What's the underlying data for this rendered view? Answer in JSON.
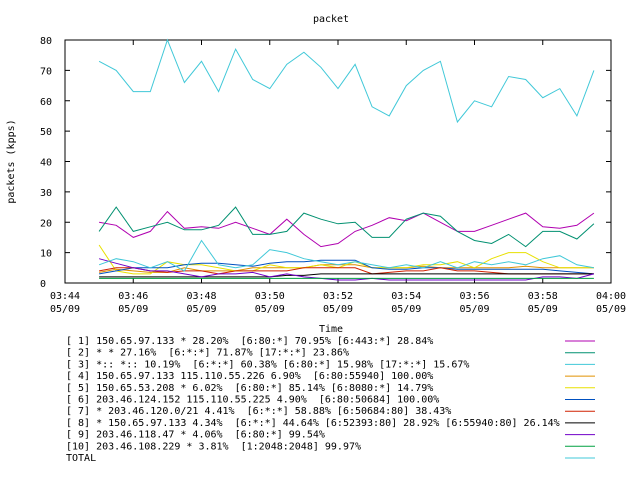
{
  "chart_data": {
    "type": "line",
    "title": "packet",
    "xlabel": "Time",
    "ylabel": "packets (kpps)",
    "ylim": [
      0,
      80
    ],
    "yticks": [
      0,
      10,
      20,
      30,
      40,
      50,
      60,
      70,
      80
    ],
    "xlim": [
      "03:44",
      "04:00"
    ],
    "xticks": [
      {
        "time": "03:44",
        "date": "05/09"
      },
      {
        "time": "03:46",
        "date": "05/09"
      },
      {
        "time": "03:48",
        "date": "05/09"
      },
      {
        "time": "03:50",
        "date": "05/09"
      },
      {
        "time": "03:52",
        "date": "05/09"
      },
      {
        "time": "03:54",
        "date": "05/09"
      },
      {
        "time": "03:56",
        "date": "05/09"
      },
      {
        "time": "03:58",
        "date": "05/09"
      },
      {
        "time": "04:00",
        "date": "05/09"
      }
    ],
    "grid": false,
    "legend_position": "bottom",
    "x": [
      "03:45:00",
      "03:45:30",
      "03:46:00",
      "03:46:30",
      "03:47:00",
      "03:47:30",
      "03:48:00",
      "03:48:30",
      "03:49:00",
      "03:49:30",
      "03:50:00",
      "03:50:30",
      "03:51:00",
      "03:51:30",
      "03:52:00",
      "03:52:30",
      "03:53:00",
      "03:53:30",
      "03:54:00",
      "03:54:30",
      "03:55:00",
      "03:55:30",
      "03:56:00",
      "03:56:30",
      "03:57:00",
      "03:57:30",
      "03:58:00",
      "03:58:30",
      "03:59:00",
      "03:59:30"
    ],
    "series": [
      {
        "name": "[ 1] 150.65.97.133 * 28.20%  [6:80:*] 70.95% [6:443:*] 28.84%",
        "color": "#b000b0",
        "values": [
          20,
          19,
          15,
          17,
          23.5,
          18,
          18.5,
          18,
          20,
          18,
          16,
          21,
          16,
          12,
          13,
          17,
          19,
          21.5,
          20.5,
          23,
          20,
          17,
          17,
          19,
          21,
          23,
          18.5,
          18,
          19,
          23
        ]
      },
      {
        "name": "[ 2] * * 27.16%  [6:*:*] 71.87% [17:*:*] 23.86%",
        "color": "#009070",
        "values": [
          17,
          25,
          17,
          18.5,
          20,
          17.5,
          17.5,
          19,
          25,
          16,
          16,
          17,
          23,
          21,
          19.5,
          20,
          15,
          15,
          21,
          23,
          22,
          17,
          14,
          13,
          16,
          12,
          17,
          17,
          14.5,
          19.5
        ]
      },
      {
        "name": "[ 3] *:: *:: 10.19%  [6:*:*] 60.38% [6:80:*] 15.98% [17:*:*] 15.67%",
        "color": "#40c8d8",
        "values": [
          73,
          70,
          63,
          63,
          80,
          66,
          73,
          63,
          77,
          67,
          64,
          72,
          76,
          71,
          64,
          72,
          58,
          55,
          65,
          70,
          73,
          53,
          60,
          58,
          68,
          67,
          61,
          64,
          55,
          70
        ]
      },
      {
        "name": "[ 4] 150.65.97.133 115.110.55.226 6.90%  [6:80:55940] 100.00%",
        "color": "#e09000",
        "values": [
          3.5,
          4.5,
          4,
          3.5,
          3.5,
          5,
          4,
          4,
          4,
          5,
          5,
          5,
          5,
          6,
          6,
          6,
          5,
          5,
          5,
          5.5,
          5,
          5,
          5,
          5,
          5,
          5.5,
          5,
          5,
          5,
          5
        ]
      },
      {
        "name": "[ 5] 150.65.53.208 * 6.02%  [6:80:*] 85.14% [6:8080:*] 14.79%",
        "color": "#e8e000",
        "values": [
          12.5,
          4,
          3,
          3,
          7,
          6,
          6,
          5,
          4,
          4,
          6,
          5,
          5,
          6,
          5,
          7,
          5,
          5,
          5,
          6,
          6,
          7,
          5,
          8,
          10,
          10,
          7,
          5,
          5,
          5
        ]
      },
      {
        "name": "[ 6] 203.46.124.152 115.110.55.225 4.90%  [6:80:50684] 100.00%",
        "color": "#0050c0",
        "values": [
          3,
          4,
          5,
          5,
          5,
          6,
          6.5,
          6.5,
          6,
          5.5,
          6.5,
          7,
          7,
          7.5,
          7.5,
          7.5,
          5,
          4.5,
          4.5,
          5,
          5,
          4.5,
          4.5,
          4.5,
          4.5,
          4.5,
          4.5,
          4,
          3.5,
          3
        ]
      },
      {
        "name": "[ 7] * 203.46.120.0/21 4.41%  [6:*:*] 58.88% [6:50684:80] 38.43%",
        "color": "#d02000",
        "values": [
          4,
          5,
          5,
          4,
          3.5,
          4,
          4,
          3,
          4,
          4,
          4,
          4,
          5,
          5,
          5,
          5,
          3,
          3.5,
          4,
          4,
          5,
          4,
          4,
          3.5,
          3,
          3,
          3,
          3,
          3,
          3
        ]
      },
      {
        "name": "[ 8] * 150.65.97.133 4.34%  [6:*:*] 44.64% [6:52393:80] 28.92% [6:55940:80] 26.14%",
        "color": "#000000",
        "values": [
          2,
          2,
          2,
          2,
          2,
          2,
          2,
          2,
          2,
          2,
          2,
          2.5,
          2.5,
          3,
          3,
          3,
          3,
          3,
          3,
          3,
          3,
          3,
          3,
          3,
          3,
          3,
          3,
          3,
          3,
          3
        ]
      },
      {
        "name": "[ 9] 203.46.118.47 * 4.06%  [6:80:*] 99.54%",
        "color": "#7000c8",
        "values": [
          8,
          6.5,
          5,
          4,
          4,
          3,
          2,
          3,
          3,
          3.5,
          2,
          3,
          2,
          1.5,
          1,
          1,
          1.5,
          1,
          1,
          1,
          1,
          1,
          1,
          1,
          1,
          1,
          2,
          2,
          1.5,
          3
        ]
      },
      {
        "name": "[10] 203.46.108.229 * 3.81%  [1:2048:2048] 99.97%",
        "color": "#00a040",
        "values": [
          1.5,
          1.5,
          1.5,
          1.5,
          1.5,
          1.5,
          1.5,
          1.5,
          1.5,
          1.5,
          1.5,
          1.5,
          1.5,
          1.5,
          1.5,
          1.5,
          1.5,
          1.5,
          1.5,
          1.5,
          1.5,
          1.5,
          1.5,
          1.5,
          1.5,
          1.5,
          1.5,
          1.5,
          1.5,
          1.5
        ]
      },
      {
        "name": "TOTAL",
        "color": "#40c8d8",
        "values": [
          6,
          8,
          7,
          5,
          7,
          4,
          14,
          6,
          5,
          6,
          11,
          10,
          8,
          7,
          6,
          7,
          6,
          5,
          6,
          5,
          7,
          5,
          7,
          6,
          7,
          6,
          8,
          9,
          6,
          5
        ]
      }
    ]
  }
}
